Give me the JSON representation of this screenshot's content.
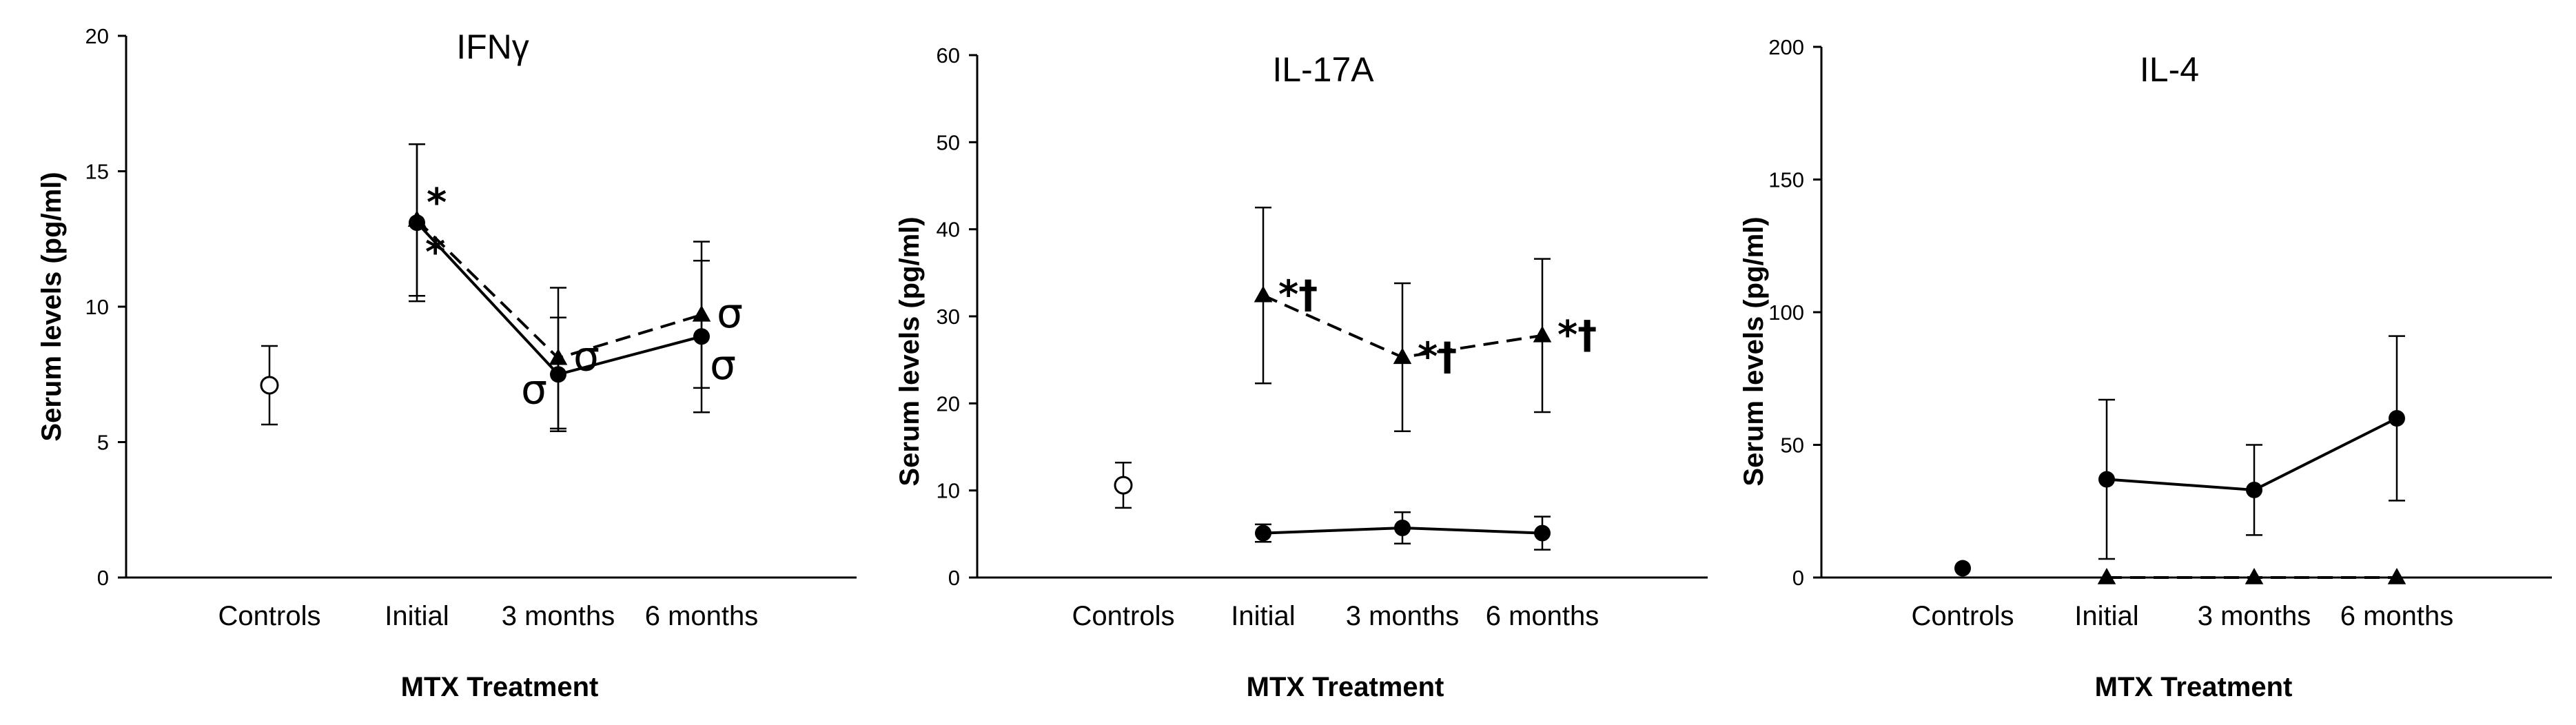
{
  "chart_data": [
    {
      "type": "line",
      "title": "IFNγ",
      "xlabel": "MTX Treatment",
      "ylabel": "Serum levels (pg/ml)",
      "ylim": [
        0,
        20
      ],
      "yticks": [
        0,
        5,
        10,
        15,
        20
      ],
      "categories": [
        "Controls",
        "Initial",
        "3 months",
        "6 months"
      ],
      "controls": {
        "value": 7.1,
        "err": 1.45,
        "marker": "open-circle"
      },
      "series": [
        {
          "name": "circles",
          "marker": "circle",
          "line": "solid",
          "values": [
            null,
            13.1,
            7.5,
            8.9
          ],
          "errors": [
            null,
            2.9,
            2.1,
            2.8
          ]
        },
        {
          "name": "triangles",
          "marker": "triangle",
          "line": "dashed",
          "values": [
            null,
            13.2,
            8.1,
            9.7
          ],
          "errors": [
            null,
            2.8,
            2.6,
            2.7
          ]
        }
      ],
      "annotations": [
        {
          "text": "*",
          "cat": 1,
          "value": 13.1,
          "pos": "above-right"
        },
        {
          "text": "*",
          "cat": 1,
          "value": 13.1,
          "pos": "below-right"
        },
        {
          "text": "σ",
          "cat": 2,
          "value": 8.1,
          "pos": "right"
        },
        {
          "text": "σ",
          "cat": 2,
          "value": 7.5,
          "pos": "left"
        },
        {
          "text": "σ",
          "cat": 3,
          "value": 9.7,
          "pos": "right"
        },
        {
          "text": "σ",
          "cat": 3,
          "value": 8.9,
          "pos": "below-right"
        }
      ]
    },
    {
      "type": "line",
      "title": "IL-17A",
      "xlabel": "MTX Treatment",
      "ylabel": "Serum levels (pg/ml)",
      "ylim": [
        0,
        60
      ],
      "yticks": [
        0,
        10,
        20,
        30,
        40,
        50,
        60
      ],
      "categories": [
        "Controls",
        "Initial",
        "3 months",
        "6 months"
      ],
      "controls": {
        "value": 10.6,
        "err": 2.6,
        "marker": "open-circle"
      },
      "series": [
        {
          "name": "circles",
          "marker": "circle",
          "line": "solid",
          "values": [
            null,
            5.1,
            5.7,
            5.1
          ],
          "errors": [
            null,
            1.0,
            1.8,
            1.9
          ]
        },
        {
          "name": "triangles",
          "marker": "triangle",
          "line": "dashed",
          "values": [
            null,
            32.4,
            25.3,
            27.8
          ],
          "errors": [
            null,
            10.1,
            8.5,
            8.8
          ]
        }
      ],
      "annotations": [
        {
          "text": "*†",
          "cat": 1,
          "value": 32.4,
          "pos": "right"
        },
        {
          "text": "*†",
          "cat": 2,
          "value": 25.3,
          "pos": "right"
        },
        {
          "text": "*†",
          "cat": 3,
          "value": 27.8,
          "pos": "right"
        }
      ]
    },
    {
      "type": "line",
      "title": "IL-4",
      "xlabel": "MTX Treatment",
      "ylabel": "Serum levels (pg/ml)",
      "ylim": [
        0,
        200
      ],
      "yticks": [
        0,
        50,
        100,
        150,
        200
      ],
      "categories": [
        "Controls",
        "Initial",
        "3 months",
        "6 months"
      ],
      "controls": {
        "value": 3.5,
        "err": 0,
        "marker": "circle"
      },
      "series": [
        {
          "name": "circles",
          "marker": "circle",
          "line": "solid",
          "values": [
            null,
            37,
            33,
            60
          ],
          "errors": [
            null,
            30,
            17,
            31
          ]
        },
        {
          "name": "triangles",
          "marker": "triangle",
          "line": "dashed",
          "values": [
            null,
            0,
            0,
            0
          ],
          "errors": [
            null,
            0,
            0,
            0
          ]
        }
      ],
      "annotations": []
    }
  ]
}
